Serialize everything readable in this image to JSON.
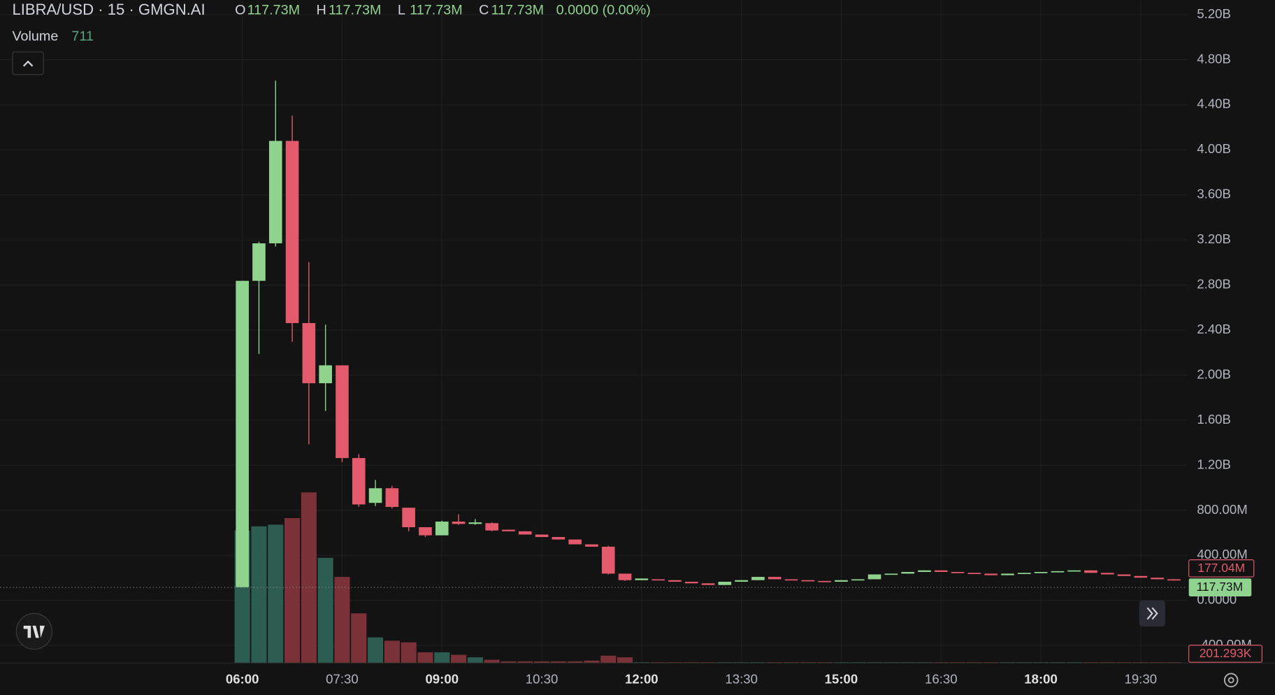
{
  "chart_data": {
    "type": "candlestick",
    "title": "LIBRA/USD · 15 · GMGN.AI",
    "ohlc_labels": [
      "O",
      "H",
      "L",
      "C"
    ],
    "ohlc_values": [
      "117.73M",
      "117.73M",
      "117.73M",
      "117.73M"
    ],
    "change": "0.0000 (0.00%)",
    "volume_title": "Volume",
    "volume_value": "711",
    "markers": [
      "177.04M",
      "117.73M",
      "201.293K"
    ],
    "categories": [
      "06:00",
      null,
      null,
      null,
      null,
      null,
      "07:30",
      null,
      null,
      null,
      null,
      null,
      "09:00",
      null,
      null,
      null,
      null,
      null,
      "10:30",
      null,
      null,
      null,
      null,
      null,
      "12:00",
      null,
      null,
      null,
      null,
      null,
      "13:30",
      null,
      null,
      null,
      null,
      null,
      "15:00",
      null,
      null,
      null,
      null,
      null,
      "16:30",
      null,
      null,
      null,
      null,
      null,
      "18:00",
      null,
      null,
      null,
      null,
      null,
      "19:30",
      null,
      null
    ],
    "open": [
      118,
      2837,
      3170,
      4079,
      2462,
      1928,
      2087,
      1264,
      866,
      996,
      823,
      650,
      578,
      700,
      679,
      686,
      628,
      614,
      585,
      563,
      541,
      498,
      477,
      238,
      180,
      188,
      180,
      166,
      152,
      137,
      166,
      180,
      209,
      188,
      180,
      173,
      166,
      180,
      188,
      231,
      238,
      253,
      267,
      253,
      245,
      238,
      224,
      238,
      245,
      253,
      260,
      267,
      245,
      231,
      217,
      202,
      188
    ],
    "high": [
      2837,
      3184,
      4614,
      4303,
      3003,
      2448,
      2087,
      1300,
      1069,
      1018,
      823,
      650,
      708,
      765,
      722,
      693,
      628,
      614,
      585,
      563,
      541,
      498,
      484,
      238,
      195,
      188,
      180,
      166,
      152,
      166,
      180,
      209,
      209,
      188,
      180,
      173,
      180,
      188,
      231,
      238,
      253,
      267,
      267,
      253,
      245,
      238,
      238,
      245,
      253,
      260,
      267,
      267,
      245,
      231,
      217,
      202,
      188
    ],
    "low": [
      118,
      2188,
      3141,
      2296,
      1386,
      1682,
      1227,
      830,
      838,
      816,
      614,
      563,
      578,
      671,
      671,
      614,
      614,
      585,
      563,
      541,
      498,
      477,
      231,
      173,
      180,
      180,
      166,
      152,
      137,
      137,
      166,
      180,
      188,
      180,
      173,
      166,
      166,
      180,
      188,
      231,
      238,
      253,
      253,
      245,
      238,
      224,
      224,
      238,
      245,
      253,
      260,
      245,
      231,
      217,
      202,
      188,
      177.04
    ],
    "close": [
      2837,
      3170,
      4079,
      2462,
      1928,
      2087,
      1264,
      852,
      996,
      830,
      650,
      578,
      700,
      679,
      693,
      621,
      614,
      585,
      563,
      541,
      498,
      477,
      238,
      180,
      195,
      180,
      166,
      152,
      137,
      166,
      180,
      209,
      188,
      180,
      173,
      166,
      180,
      188,
      231,
      238,
      253,
      267,
      253,
      245,
      238,
      224,
      238,
      245,
      253,
      260,
      267,
      245,
      231,
      217,
      202,
      188,
      177.04
    ],
    "volume": [
      160,
      165,
      167,
      175,
      206,
      127,
      104,
      60,
      31,
      27,
      25,
      13,
      13,
      10,
      7,
      4,
      2,
      2,
      2,
      2,
      2,
      3,
      9,
      7,
      1,
      1,
      1,
      1,
      1,
      1,
      1,
      1,
      1,
      1,
      1,
      1,
      1,
      1,
      1,
      1,
      1,
      1,
      1,
      1,
      1,
      1,
      1,
      1,
      1,
      1,
      1,
      1,
      1,
      1,
      1,
      1,
      1
    ],
    "up_color": "#8fd38f",
    "down_color": "#e25a6c",
    "volume_up_color": "#2c5d50",
    "volume_down_color": "#7a3238",
    "ylim": [
      -556,
      5328
    ],
    "y2lim": [
      0,
      800
    ],
    "yticks": [
      {
        "value": -400,
        "label": "-400.00M"
      },
      {
        "value": 0,
        "label": "0.0000"
      },
      {
        "value": 400,
        "label": "400.00M"
      },
      {
        "value": 800,
        "label": "800.00M"
      },
      {
        "value": 1200,
        "label": "1.20B"
      },
      {
        "value": 1600,
        "label": "1.60B"
      },
      {
        "value": 2000,
        "label": "2.00B"
      },
      {
        "value": 2400,
        "label": "2.40B"
      },
      {
        "value": 2800,
        "label": "2.80B"
      },
      {
        "value": 3200,
        "label": "3.20B"
      },
      {
        "value": 3600,
        "label": "3.60B"
      },
      {
        "value": 4000,
        "label": "4.00B"
      },
      {
        "value": 4400,
        "label": "4.40B"
      },
      {
        "value": 4800,
        "label": "4.80B"
      },
      {
        "value": 5200,
        "label": "5.20B"
      }
    ],
    "grid": true
  }
}
